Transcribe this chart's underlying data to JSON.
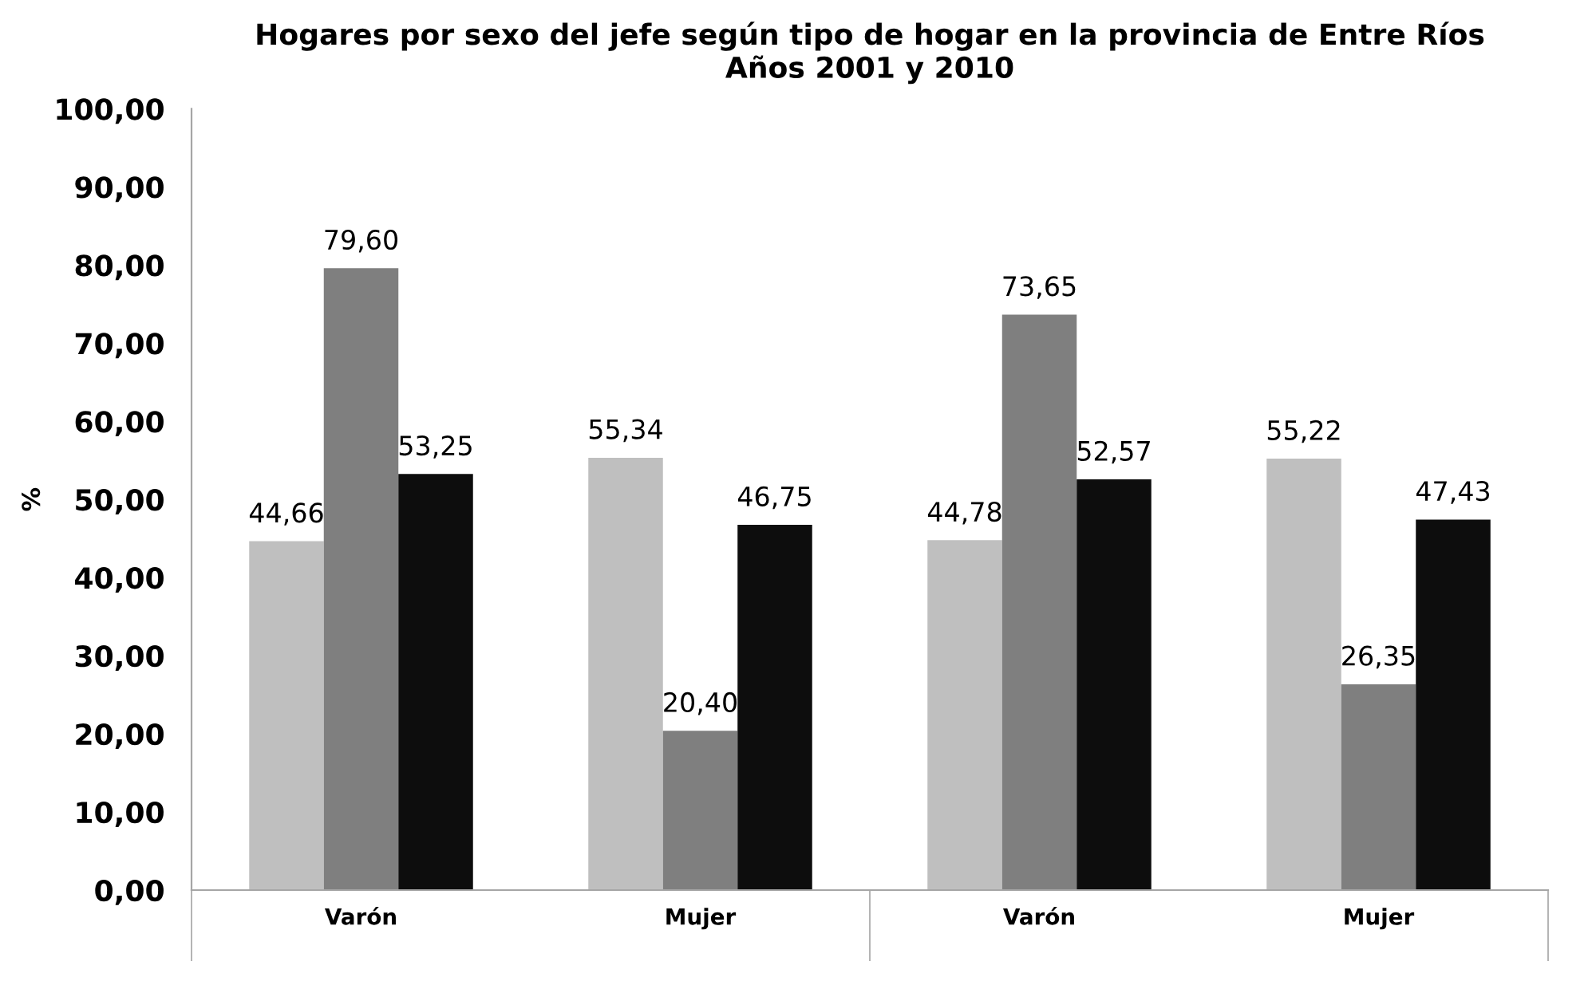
{
  "chart_data": {
    "type": "bar",
    "title": "Hogares por sexo del jefe según tipo de hogar en la provincia de Entre Ríos\nAños 2001 y 2010",
    "ylabel": "%",
    "categories": [
      "Varón",
      "Mujer",
      "Varón",
      "Mujer"
    ],
    "series": [
      {
        "color": "#bfbfbf",
        "values": [
          44.66,
          55.34,
          44.78,
          55.22
        ],
        "value_labels": [
          "44,66",
          "55,34",
          "44,78",
          "55,22"
        ]
      },
      {
        "color": "#7f7f7f",
        "values": [
          79.6,
          20.4,
          73.65,
          26.35
        ],
        "value_labels": [
          "79,60",
          "20,40",
          "73,65",
          "26,35"
        ]
      },
      {
        "color": "#0d0d0d",
        "values": [
          53.25,
          46.75,
          52.57,
          47.43
        ],
        "value_labels": [
          "53,25",
          "46,75",
          "52,57",
          "47,43"
        ]
      }
    ],
    "ylim": [
      0,
      100
    ],
    "yticks": [
      {
        "value": 0,
        "label": "0,00"
      },
      {
        "value": 10,
        "label": "10,00"
      },
      {
        "value": 20,
        "label": "20,00"
      },
      {
        "value": 30,
        "label": "30,00"
      },
      {
        "value": 40,
        "label": "40,00"
      },
      {
        "value": 50,
        "label": "50,00"
      },
      {
        "value": 60,
        "label": "60,00"
      },
      {
        "value": 70,
        "label": "70,00"
      },
      {
        "value": 80,
        "label": "80,00"
      },
      {
        "value": 90,
        "label": "90,00"
      },
      {
        "value": 100,
        "label": "100,00"
      }
    ],
    "grid": false,
    "legend": false
  }
}
